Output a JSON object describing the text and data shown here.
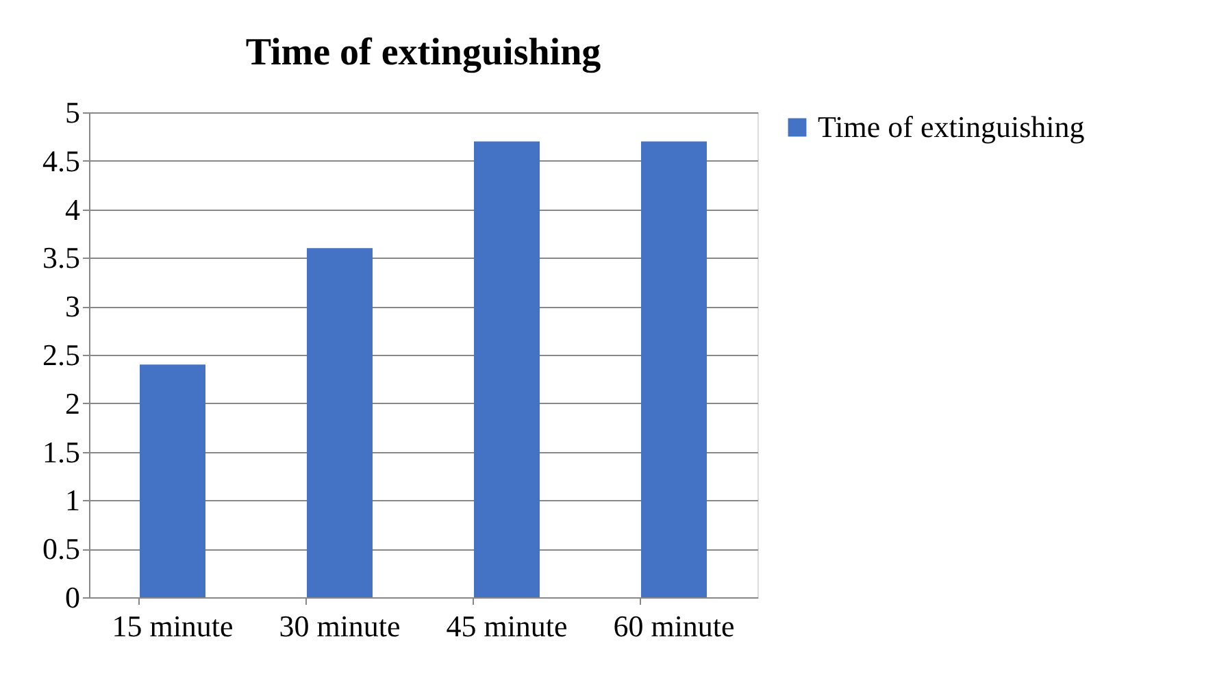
{
  "chart_data": {
    "type": "bar",
    "title": "Time of extinguishing",
    "categories": [
      "15 minute",
      "30 minute",
      "45 minute",
      "60 minute"
    ],
    "series": [
      {
        "name": "Time of extinguishing",
        "color": "#4472c4",
        "values": [
          2.4,
          3.6,
          4.7,
          4.7
        ]
      }
    ],
    "ylim": [
      0,
      5
    ],
    "yticks": [
      0,
      0.5,
      1,
      1.5,
      2,
      2.5,
      3,
      3.5,
      4,
      4.5,
      5
    ],
    "grid": "y",
    "legend": "right"
  }
}
